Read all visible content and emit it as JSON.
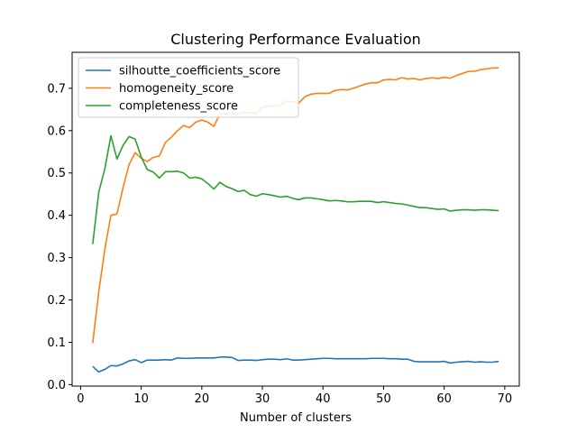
{
  "chart_data": {
    "type": "line",
    "title": "Clustering Performance Evaluation",
    "xlabel": "Number of clusters",
    "ylabel": "",
    "xlim": [
      -1.4,
      72.4
    ],
    "ylim": [
      -0.0035,
      0.785
    ],
    "xticks": [
      0,
      10,
      20,
      30,
      40,
      50,
      60,
      70
    ],
    "yticks": [
      0.0,
      0.1,
      0.2,
      0.3,
      0.4,
      0.5,
      0.6,
      0.7
    ],
    "ytick_labels": [
      "0.0",
      "0.1",
      "0.2",
      "0.3",
      "0.4",
      "0.5",
      "0.6",
      "0.7"
    ],
    "legend_position": "top-left",
    "x": [
      2,
      3,
      4,
      5,
      6,
      7,
      8,
      9,
      10,
      11,
      12,
      13,
      14,
      15,
      16,
      17,
      18,
      19,
      20,
      21,
      22,
      23,
      24,
      25,
      26,
      27,
      28,
      29,
      30,
      31,
      32,
      33,
      34,
      35,
      36,
      37,
      38,
      39,
      40,
      41,
      42,
      43,
      44,
      45,
      46,
      47,
      48,
      49,
      50,
      51,
      52,
      53,
      54,
      55,
      56,
      57,
      58,
      59,
      60,
      61,
      62,
      63,
      64,
      65,
      66,
      67,
      68,
      69
    ],
    "series": [
      {
        "name": "silhoutte_coefficients_score",
        "color": "#1f77b4",
        "values": [
          0.043,
          0.03,
          0.036,
          0.045,
          0.044,
          0.049,
          0.056,
          0.059,
          0.052,
          0.058,
          0.058,
          0.058,
          0.059,
          0.058,
          0.063,
          0.062,
          0.062,
          0.063,
          0.063,
          0.063,
          0.063,
          0.065,
          0.065,
          0.064,
          0.057,
          0.058,
          0.058,
          0.057,
          0.059,
          0.06,
          0.06,
          0.059,
          0.061,
          0.058,
          0.058,
          0.059,
          0.06,
          0.061,
          0.062,
          0.062,
          0.061,
          0.061,
          0.061,
          0.061,
          0.061,
          0.061,
          0.062,
          0.062,
          0.062,
          0.061,
          0.061,
          0.06,
          0.06,
          0.055,
          0.054,
          0.054,
          0.054,
          0.054,
          0.055,
          0.051,
          0.053,
          0.054,
          0.055,
          0.053,
          0.054,
          0.053,
          0.053,
          0.055
        ]
      },
      {
        "name": "homogeneity_score",
        "color": "#ff7f0e",
        "values": [
          0.098,
          0.22,
          0.32,
          0.4,
          0.403,
          0.465,
          0.52,
          0.548,
          0.535,
          0.527,
          0.537,
          0.54,
          0.572,
          0.585,
          0.6,
          0.612,
          0.607,
          0.62,
          0.625,
          0.62,
          0.61,
          0.64,
          0.64,
          0.64,
          0.64,
          0.643,
          0.643,
          0.64,
          0.655,
          0.658,
          0.658,
          0.66,
          0.67,
          0.668,
          0.665,
          0.68,
          0.686,
          0.688,
          0.688,
          0.688,
          0.695,
          0.697,
          0.696,
          0.7,
          0.705,
          0.71,
          0.713,
          0.713,
          0.72,
          0.721,
          0.72,
          0.725,
          0.722,
          0.723,
          0.72,
          0.723,
          0.725,
          0.723,
          0.726,
          0.724,
          0.73,
          0.735,
          0.74,
          0.74,
          0.744,
          0.746,
          0.748,
          0.748
        ]
      },
      {
        "name": "completeness_score",
        "color": "#2ca02c",
        "values": [
          0.332,
          0.455,
          0.51,
          0.588,
          0.533,
          0.565,
          0.586,
          0.58,
          0.538,
          0.508,
          0.502,
          0.488,
          0.503,
          0.503,
          0.504,
          0.5,
          0.488,
          0.49,
          0.486,
          0.475,
          0.462,
          0.478,
          0.468,
          0.463,
          0.456,
          0.459,
          0.449,
          0.445,
          0.451,
          0.449,
          0.446,
          0.443,
          0.445,
          0.44,
          0.437,
          0.441,
          0.441,
          0.439,
          0.437,
          0.434,
          0.435,
          0.434,
          0.432,
          0.432,
          0.433,
          0.433,
          0.433,
          0.43,
          0.432,
          0.43,
          0.428,
          0.427,
          0.424,
          0.421,
          0.418,
          0.418,
          0.416,
          0.414,
          0.415,
          0.41,
          0.412,
          0.413,
          0.413,
          0.412,
          0.413,
          0.413,
          0.412,
          0.411
        ]
      }
    ]
  }
}
